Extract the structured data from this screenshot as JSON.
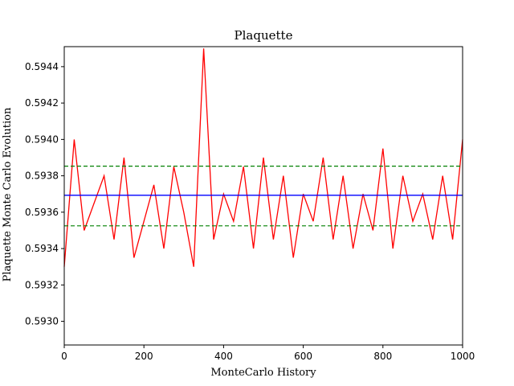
{
  "chart_data": {
    "type": "line",
    "title": "Plaquette",
    "xlabel": "MonteCarlo History",
    "ylabel": "Plaquette Monte Carlo Evolution",
    "xlim": [
      0,
      1000
    ],
    "ylim": [
      0.59287,
      0.59451
    ],
    "xticks": [
      0,
      200,
      400,
      600,
      800,
      1000
    ],
    "yticks": [
      0.593,
      0.5932,
      0.5934,
      0.5936,
      0.5938,
      0.594,
      0.5942,
      0.5944
    ],
    "xtick_labels": [
      "0",
      "200",
      "400",
      "600",
      "800",
      "1000"
    ],
    "ytick_labels": [
      "0.5930",
      "0.5932",
      "0.5934",
      "0.5936",
      "0.5938",
      "0.5940",
      "0.5942",
      "0.5944"
    ],
    "grid": false,
    "legend": "none",
    "series": [
      {
        "color": "#ff0000",
        "style": "solid",
        "x_start": 0,
        "x_step": 25,
        "values": [
          0.5933,
          0.594,
          0.5935,
          0.59365,
          0.5938,
          0.59345,
          0.5939,
          0.59335,
          0.59355,
          0.59375,
          0.5934,
          0.59385,
          0.5936,
          0.5933,
          0.5945,
          0.59345,
          0.5937,
          0.59355,
          0.59385,
          0.5934,
          0.5939,
          0.59345,
          0.5938,
          0.59335,
          0.5937,
          0.59355,
          0.5939,
          0.59345,
          0.5938,
          0.5934,
          0.5937,
          0.5935,
          0.59395,
          0.5934,
          0.5938,
          0.59355,
          0.5937,
          0.59345,
          0.5938,
          0.59345,
          0.594
        ]
      },
      {
        "color": "#0000ff",
        "style": "solid",
        "x": [
          0,
          1000
        ],
        "values": [
          0.593693,
          0.593693
        ]
      },
      {
        "color": "#008000",
        "style": "dashed",
        "x": [
          0,
          1000
        ],
        "values": [
          0.593853,
          0.593853
        ]
      },
      {
        "color": "#008000",
        "style": "dashed",
        "x": [
          0,
          1000
        ],
        "values": [
          0.593525,
          0.593525
        ]
      }
    ],
    "annotations": []
  }
}
